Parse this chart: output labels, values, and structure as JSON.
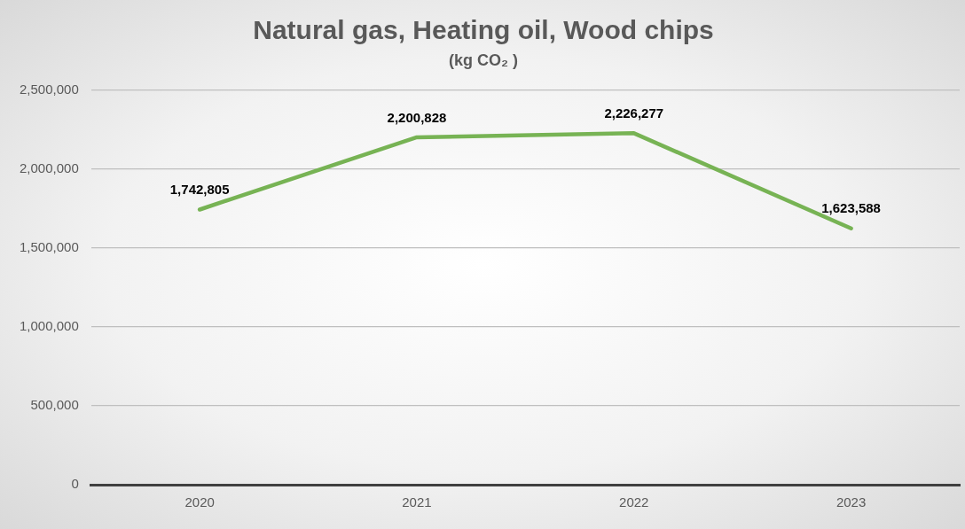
{
  "chart_data": {
    "type": "line",
    "title": "Natural gas, Heating oil, Wood chips",
    "subtitle": "(kg CO₂ )",
    "categories": [
      "2020",
      "2021",
      "2022",
      "2023"
    ],
    "series": [
      {
        "color": "#77b354",
        "values": [
          1742805,
          2200828,
          2226277,
          1623588
        ],
        "value_labels": [
          "1,742,805",
          "2,200,828",
          "2,226,277",
          "1,623,588"
        ]
      }
    ],
    "ylim": [
      0,
      2500000
    ],
    "yticks": [
      0,
      {
        "value": 500000,
        "label": "500,000"
      },
      {
        "value": 1000000,
        "label": "1,000,000"
      },
      {
        "value": 1500000,
        "label": "1,500,000"
      },
      {
        "value": 2000000,
        "label": "2,000,000"
      },
      {
        "value": 2500000,
        "label": "2,500,000"
      }
    ],
    "grid": "y",
    "marker": "none"
  }
}
